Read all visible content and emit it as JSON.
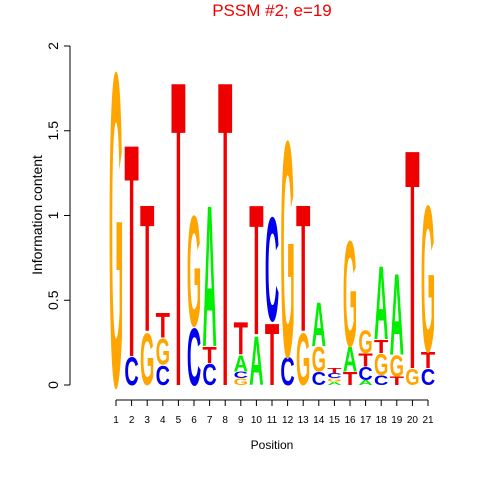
{
  "chart_data": {
    "type": "logo",
    "title": "PSSM #2; e=19",
    "xlabel": "Position",
    "ylabel": "Information content",
    "x": [
      1,
      2,
      3,
      4,
      5,
      6,
      7,
      8,
      9,
      10,
      11,
      12,
      13,
      14,
      15,
      16,
      17,
      18,
      19,
      20,
      21
    ],
    "xlim": [
      1,
      21
    ],
    "xticks": [
      1,
      2,
      3,
      4,
      5,
      6,
      7,
      8,
      9,
      10,
      11,
      12,
      13,
      14,
      15,
      16,
      17,
      18,
      19,
      20,
      21
    ],
    "ylim": [
      0,
      2
    ],
    "yticks": [
      0,
      0.5,
      1,
      1.5,
      2
    ],
    "colors": {
      "A": "#00ee00",
      "C": "#0000ee",
      "G": "#ffa500",
      "T": "#ee0000"
    },
    "title_color": "#ee0000",
    "stacks": [
      [
        {
          "letter": "G",
          "value": 1.93
        }
      ],
      [
        {
          "letter": "C",
          "value": 0.17
        },
        {
          "letter": "T",
          "value": 1.31
        }
      ],
      [
        {
          "letter": "G",
          "value": 0.32
        },
        {
          "letter": "T",
          "value": 0.78
        }
      ],
      [
        {
          "letter": "C",
          "value": 0.12
        },
        {
          "letter": "G",
          "value": 0.16
        },
        {
          "letter": "T",
          "value": 0.15
        }
      ],
      [
        {
          "letter": "T",
          "value": 1.88
        }
      ],
      [
        {
          "letter": "C",
          "value": 0.35
        },
        {
          "letter": "G",
          "value": 0.68
        }
      ],
      [
        {
          "letter": "C",
          "value": 0.13
        },
        {
          "letter": "T",
          "value": 0.1
        },
        {
          "letter": "A",
          "value": 0.87
        }
      ],
      [
        {
          "letter": "T",
          "value": 1.88
        }
      ],
      [
        {
          "letter": "G",
          "value": 0.04
        },
        {
          "letter": "C",
          "value": 0.04
        },
        {
          "letter": "A",
          "value": 0.1
        },
        {
          "letter": "T",
          "value": 0.2
        }
      ],
      [
        {
          "letter": "A",
          "value": 0.3
        },
        {
          "letter": "T",
          "value": 0.8
        }
      ],
      [
        {
          "letter": "T",
          "value": 0.38
        },
        {
          "letter": "C",
          "value": 0.64
        }
      ],
      [
        {
          "letter": "C",
          "value": 0.17
        },
        {
          "letter": "G",
          "value": 1.33
        }
      ],
      [
        {
          "letter": "G",
          "value": 0.32
        },
        {
          "letter": "T",
          "value": 0.78
        }
      ],
      [
        {
          "letter": "C",
          "value": 0.08
        },
        {
          "letter": "G",
          "value": 0.15
        },
        {
          "letter": "A",
          "value": 0.27
        }
      ],
      [
        {
          "letter": "A",
          "value": 0.02
        },
        {
          "letter": "G",
          "value": 0.02
        },
        {
          "letter": "C",
          "value": 0.03
        },
        {
          "letter": "T",
          "value": 0.03
        }
      ],
      [
        {
          "letter": "T",
          "value": 0.08
        },
        {
          "letter": "A",
          "value": 0.15
        },
        {
          "letter": "G",
          "value": 0.65
        }
      ],
      [
        {
          "letter": "A",
          "value": 0.03
        },
        {
          "letter": "C",
          "value": 0.08
        },
        {
          "letter": "T",
          "value": 0.08
        },
        {
          "letter": "G",
          "value": 0.14
        }
      ],
      [
        {
          "letter": "C",
          "value": 0.06
        },
        {
          "letter": "G",
          "value": 0.13
        },
        {
          "letter": "T",
          "value": 0.08
        },
        {
          "letter": "A",
          "value": 0.45
        }
      ],
      [
        {
          "letter": "T",
          "value": 0.05
        },
        {
          "letter": "G",
          "value": 0.13
        },
        {
          "letter": "A",
          "value": 0.5
        }
      ],
      [
        {
          "letter": "G",
          "value": 0.1
        },
        {
          "letter": "T",
          "value": 1.35
        }
      ],
      [
        {
          "letter": "C",
          "value": 0.1
        },
        {
          "letter": "T",
          "value": 0.1
        },
        {
          "letter": "G",
          "value": 0.9
        }
      ]
    ]
  }
}
